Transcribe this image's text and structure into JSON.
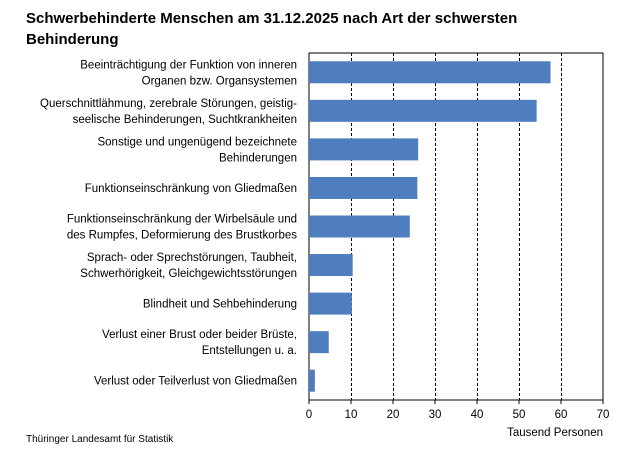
{
  "title": "Schwerbehinderte Menschen am 31.12.2025 nach Art der  schwersten Behinderung",
  "source": "Thüringer Landesamt für Statistik",
  "colors": {
    "bar": "#4f7ebf",
    "grid": "#000000",
    "axis": "#000000"
  },
  "chart_data": {
    "type": "bar",
    "orientation": "horizontal",
    "categories": [
      [
        "Beeinträchtigung der Funktion von inneren",
        "Organen bzw. Organsystemen"
      ],
      [
        "Querschnittlähmung, zerebrale Störungen, geistig-",
        "seelische Behinderungen, Suchtkrankheiten"
      ],
      [
        "Sonstige und ungenügend bezeichnete",
        "Behinderungen"
      ],
      [
        "Funktionseinschränkung von Gliedmaßen"
      ],
      [
        "Funktionseinschränkung der Wirbelsäule und",
        "des Rumpfes, Deformierung des Brustkorbes"
      ],
      [
        "Sprach- oder Sprechstörungen, Taubheit,",
        "Schwerhörigkeit, Gleichgewichtsstörungen"
      ],
      [
        "Blindheit und Sehbehinderung"
      ],
      [
        "Verlust einer Brust oder beider Brüste,",
        "Entstellungen u. a."
      ],
      [
        "Verlust oder Teilverlust von Gliedmaßen"
      ]
    ],
    "values": [
      57.5,
      54.2,
      26.0,
      25.8,
      24.0,
      10.4,
      10.2,
      4.7,
      1.4
    ],
    "xlim": [
      0,
      70
    ],
    "xticks": [
      0,
      10,
      20,
      30,
      40,
      50,
      60,
      70
    ],
    "xlabel": "Tausend Personen",
    "grid": "vertical dashed",
    "legend": "none"
  }
}
